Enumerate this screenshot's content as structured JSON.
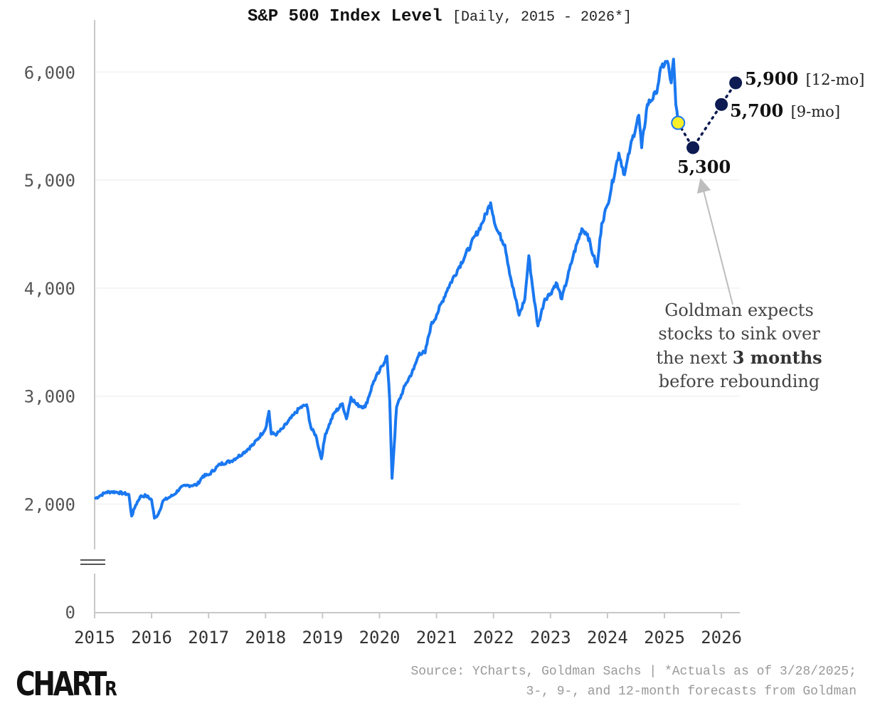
{
  "header": {
    "title": "S&P 500 Index Level",
    "subtitle": "[Daily, 2015 - 2026*]"
  },
  "chart_data": {
    "type": "line",
    "title": "S&P 500 Index Level",
    "subtitle": "[Daily, 2015 - 2026*]",
    "xlabel": "",
    "ylabel": "",
    "xlim": [
      2015,
      2026.35
    ],
    "ylim": [
      0,
      6300
    ],
    "axis_break_between": [
      0,
      1800
    ],
    "y_ticks": [
      0,
      2000,
      3000,
      4000,
      5000,
      6000
    ],
    "y_tick_labels": [
      "0",
      "2,000",
      "3,000",
      "4,000",
      "5,000",
      "6,000"
    ],
    "x_ticks": [
      2015,
      2016,
      2017,
      2018,
      2019,
      2020,
      2021,
      2022,
      2023,
      2024,
      2025,
      2026
    ],
    "x_tick_labels": [
      "2015",
      "2016",
      "2017",
      "2018",
      "2019",
      "2020",
      "2021",
      "2022",
      "2023",
      "2024",
      "2025",
      "2026"
    ],
    "series": [
      {
        "name": "S&P 500 actual (daily)",
        "color": "#1a78f0",
        "x": [
          2015.0,
          2015.1,
          2015.2,
          2015.3,
          2015.4,
          2015.5,
          2015.6,
          2015.65,
          2015.72,
          2015.8,
          2015.9,
          2016.0,
          2016.05,
          2016.12,
          2016.2,
          2016.3,
          2016.4,
          2016.5,
          2016.6,
          2016.8,
          2016.9,
          2017.0,
          2017.2,
          2017.4,
          2017.6,
          2017.8,
          2018.0,
          2018.06,
          2018.1,
          2018.2,
          2018.3,
          2018.5,
          2018.6,
          2018.72,
          2018.8,
          2018.88,
          2018.98,
          2019.05,
          2019.2,
          2019.35,
          2019.42,
          2019.5,
          2019.6,
          2019.75,
          2019.9,
          2020.0,
          2020.13,
          2020.18,
          2020.22,
          2020.3,
          2020.45,
          2020.6,
          2020.7,
          2020.8,
          2020.9,
          2021.0,
          2021.2,
          2021.4,
          2021.6,
          2021.8,
          2021.95,
          2022.05,
          2022.2,
          2022.3,
          2022.45,
          2022.55,
          2022.62,
          2022.7,
          2022.78,
          2022.9,
          2023.0,
          2023.1,
          2023.2,
          2023.4,
          2023.55,
          2023.65,
          2023.75,
          2023.82,
          2023.9,
          2024.0,
          2024.2,
          2024.3,
          2024.4,
          2024.55,
          2024.6,
          2024.7,
          2024.85,
          2024.95,
          2025.05,
          2025.12,
          2025.16,
          2025.2,
          2025.24
        ],
        "y": [
          2050,
          2080,
          2110,
          2115,
          2110,
          2100,
          2090,
          1890,
          1990,
          2070,
          2080,
          2040,
          1870,
          1910,
          2030,
          2060,
          2090,
          2150,
          2170,
          2180,
          2260,
          2270,
          2370,
          2400,
          2470,
          2560,
          2700,
          2860,
          2650,
          2650,
          2700,
          2830,
          2890,
          2920,
          2700,
          2640,
          2420,
          2650,
          2840,
          2930,
          2790,
          2990,
          2920,
          2900,
          3140,
          3230,
          3370,
          2950,
          2240,
          2900,
          3100,
          3250,
          3400,
          3400,
          3650,
          3750,
          4000,
          4200,
          4400,
          4600,
          4790,
          4550,
          4400,
          4100,
          3750,
          3900,
          4300,
          3950,
          3650,
          3900,
          3950,
          4050,
          3900,
          4300,
          4550,
          4500,
          4300,
          4200,
          4600,
          4770,
          5250,
          5050,
          5300,
          5600,
          5300,
          5700,
          5800,
          6050,
          6100,
          5900,
          6120,
          5700,
          5530
        ]
      },
      {
        "name": "Goldman Sachs forecast",
        "color": "#0d1b52",
        "style": "dotted",
        "x": [
          2025.24,
          2025.5,
          2026.0,
          2026.25
        ],
        "y": [
          5530,
          5300,
          5700,
          5900
        ],
        "point_labels": [
          "",
          "5,300",
          "5,700 [9-mo]",
          "5,900 [12-mo]"
        ]
      }
    ],
    "points": [
      {
        "name": "Last actual (3/28/2025)",
        "x": 2025.24,
        "y": 5530,
        "color": "#f8ef2a"
      },
      {
        "name": "3-month forecast",
        "x": 2025.5,
        "y": 5300,
        "label": "5,300",
        "color": "#0d1b52"
      },
      {
        "name": "9-month forecast",
        "x": 2026.0,
        "y": 5700,
        "label": "5,700",
        "horizon": "[9-mo]",
        "color": "#0d1b52"
      },
      {
        "name": "12-month forecast",
        "x": 2026.25,
        "y": 5900,
        "label": "5,900",
        "horizon": "[12-mo]",
        "color": "#0d1b52"
      }
    ],
    "annotation": {
      "lines": [
        "Goldman expects",
        "stocks to sink over",
        "the next",
        "3 months",
        "before rebounding"
      ],
      "points_to": "5,300"
    }
  },
  "footer": {
    "source_line1": "Source: YCharts, Goldman Sachs | *Actuals as of 3/28/2025;",
    "source_line2": "3-, 9-, and 12-month forecasts from Goldman",
    "logo_main": "CHART",
    "logo_small": "R"
  },
  "colors": {
    "line": "#1a78f0",
    "forecast": "#0d1b52",
    "current_point": "#f8ef2a",
    "axis": "#c8c8c8",
    "grid": "#f4f4f4"
  }
}
